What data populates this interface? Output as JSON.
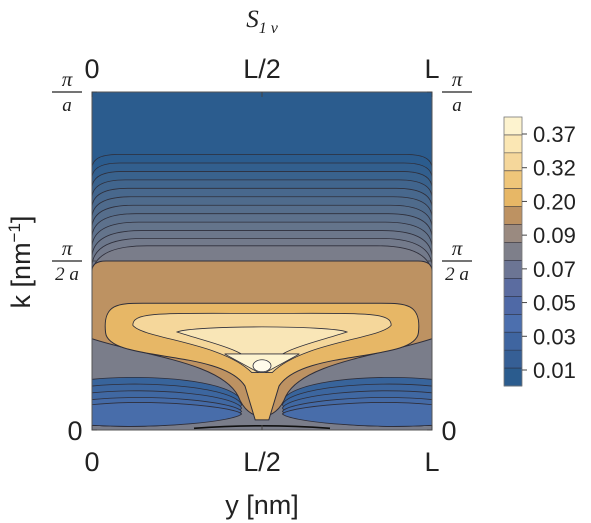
{
  "chart_data": {
    "type": "contour",
    "title": "S",
    "title_subscript": "1 v",
    "xlabel": "y [nm]",
    "ylabel_main": "k [nm",
    "ylabel_sup": "−1",
    "ylabel_close": "]",
    "x_ticks": [
      "0",
      "L/2",
      "L"
    ],
    "y_ticks": [
      {
        "kind": "plain",
        "text": "0",
        "value": 0
      },
      {
        "kind": "frac",
        "num": "π",
        "den": "2 a",
        "value": 0.5
      },
      {
        "kind": "frac",
        "num": "π",
        "den": "a",
        "value": 1.0
      }
    ],
    "xlim": [
      0,
      1
    ],
    "ylim": [
      0,
      1
    ],
    "legend": {
      "placement": "right",
      "labels": [
        "0.37",
        "0.32",
        "0.20",
        "0.09",
        "0.07",
        "0.05",
        "0.03",
        "0.01"
      ],
      "levels": [
        0.005,
        0.01,
        0.015,
        0.02,
        0.025,
        0.03,
        0.035,
        0.04,
        0.045,
        0.05,
        0.06,
        0.065,
        0.07,
        0.08,
        0.09,
        0.1,
        0.2,
        0.28,
        0.32,
        0.35,
        0.37,
        0.4
      ]
    },
    "colors": {
      "low": "#2b5c8e",
      "mid_blue": "#4c6fae",
      "grey": "#7e7f8a",
      "brown": "#bd9262",
      "orange": "#e7b766",
      "light": "#f5d79b",
      "pale": "#fdf3cf",
      "contour": "#2e2e3a"
    }
  }
}
